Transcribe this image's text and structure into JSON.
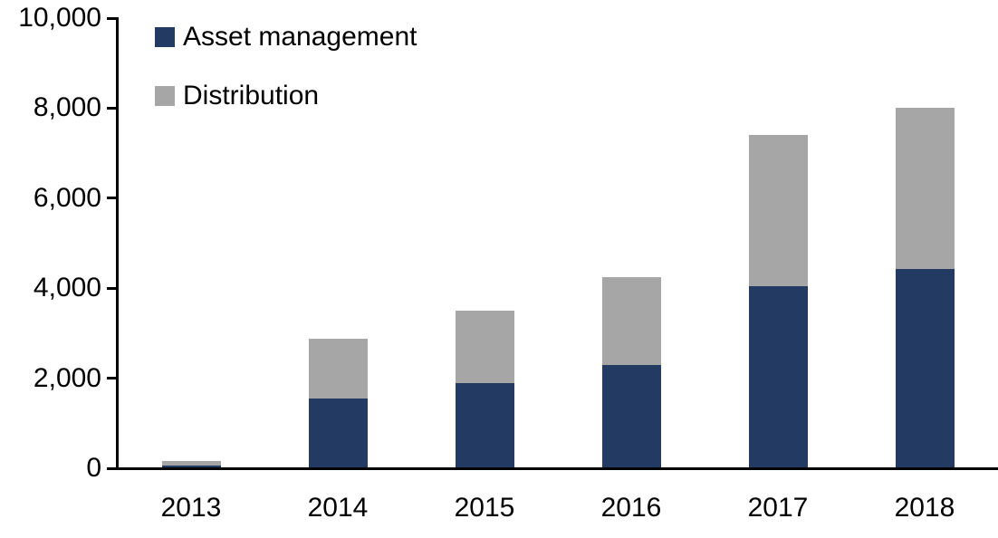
{
  "chart_data": {
    "type": "bar",
    "stacked": true,
    "title": "",
    "xlabel": "",
    "ylabel": "",
    "categories": [
      "2013",
      "2014",
      "2015",
      "2016",
      "2017",
      "2018"
    ],
    "series": [
      {
        "name": "Asset management",
        "color": "#233b62",
        "values": [
          70,
          1550,
          1900,
          2300,
          4050,
          4420
        ]
      },
      {
        "name": "Distribution",
        "color": "#a6a6a6",
        "values": [
          100,
          1320,
          1600,
          1950,
          3350,
          3580
        ]
      }
    ],
    "totals": [
      170,
      2870,
      3500,
      4250,
      7400,
      8000
    ],
    "ylim": [
      0,
      10000
    ],
    "yticks": [
      0,
      2000,
      4000,
      6000,
      8000,
      10000
    ],
    "ytick_labels": [
      "0",
      "2,000",
      "4,000",
      "6,000",
      "8,000",
      "10,000"
    ],
    "grid": false,
    "legend_position": "top-left",
    "axis_color": "#000000",
    "text_color": "#000000"
  }
}
